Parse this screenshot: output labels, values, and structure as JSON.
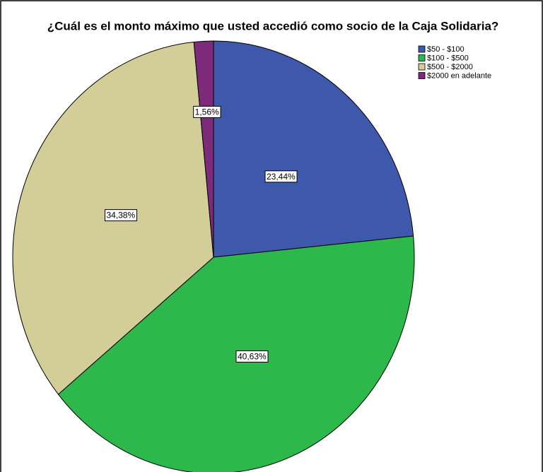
{
  "chart_data": {
    "type": "pie",
    "title": "¿Cuál es el monto máximo que usted accedió como socio de la Caja Solidaria?",
    "categories": [
      "$50 - $100",
      "$100 - $500",
      "$500 - $2000",
      "$2000 en adelante"
    ],
    "values": [
      23.44,
      40.63,
      34.38,
      1.56
    ],
    "value_labels": [
      "23,44%",
      "40,63%",
      "34,38%",
      "1,56%"
    ],
    "colors": [
      "#3e58ac",
      "#2db84b",
      "#d3ce97",
      "#7d2a7a"
    ],
    "legend": "top-right"
  }
}
